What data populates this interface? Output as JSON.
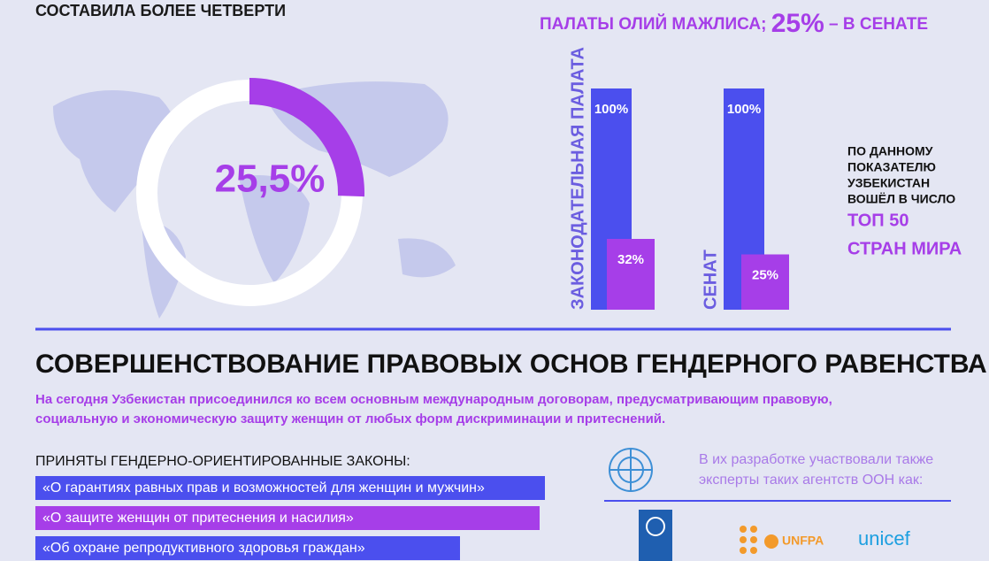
{
  "top_left": "СОСТАВИЛА БОЛЕЕ ЧЕТВЕРТИ",
  "top_right": {
    "before": "ПАЛАТЫ ОЛИЙ МАЖЛИСА;",
    "highlight": "25%",
    "after": "– В СЕНАТЕ"
  },
  "donut": {
    "value": 25.5,
    "label": "25,5%"
  },
  "chambers": [
    {
      "name": "ЗАКОНОДАТЕЛЬНАЯ ПАЛАТА",
      "values": [
        100,
        32
      ],
      "value_labels": [
        "100%",
        "32%"
      ]
    },
    {
      "name": "СЕНАТ",
      "values": [
        100,
        25
      ],
      "value_labels": [
        "100%",
        "25%"
      ]
    }
  ],
  "rank_note": {
    "lines": [
      "ПО ДАННОМУ",
      "ПОКАЗАТЕЛЮ",
      "УЗБЕКИСТАН",
      "ВОШЁЛ В ЧИСЛО"
    ],
    "highlight": [
      "ТОП 50",
      "СТРАН МИРА"
    ]
  },
  "section": {
    "title": "СОВЕРШЕНСТВОВАНИЕ ПРАВОВЫХ ОСНОВ ГЕНДЕРНОГО РАВЕНСТВА",
    "text": [
      "На сегодня Узбекистан присоединился ко всем основным международным договорам, предусматривающим правовую,",
      "социальную и экономическую защиту женщин от любых форм дискриминации и притеснений."
    ]
  },
  "laws": {
    "title": "ПРИНЯТЫ ГЕНДЕРНО-ОРИЕНТИРОВАННЫЕ ЗАКОНЫ:",
    "items": [
      "«О гарантиях равных прав и возможностей для женщин и мужчин»",
      "«О защите женщин от притеснения и насилия»",
      "«Об охране репродуктивного здоровья граждан»"
    ]
  },
  "agencies": {
    "text": [
      "В их разработке участвовали также",
      "эксперты таких агентств ООН как:"
    ],
    "logos": [
      "UNFPA",
      "unicef"
    ]
  }
}
